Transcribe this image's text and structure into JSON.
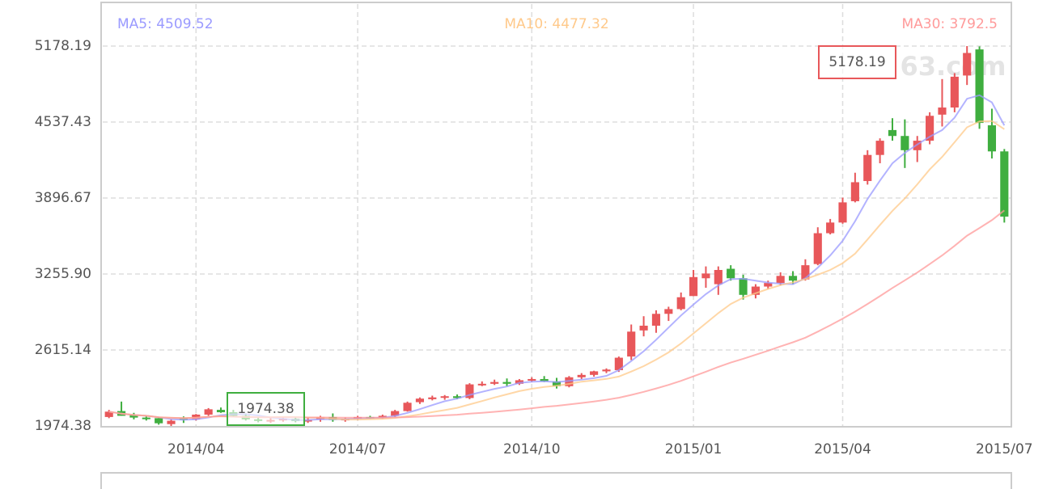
{
  "chart_data": {
    "type": "candlestick",
    "categories": [
      null,
      null,
      null,
      null,
      null,
      null,
      null,
      "2014/04",
      null,
      null,
      null,
      null,
      null,
      null,
      null,
      null,
      null,
      null,
      null,
      null,
      "2014/07",
      null,
      null,
      null,
      null,
      null,
      null,
      null,
      null,
      null,
      null,
      null,
      null,
      null,
      "2014/10",
      null,
      null,
      null,
      null,
      null,
      null,
      null,
      null,
      null,
      null,
      null,
      null,
      "2015/01",
      null,
      null,
      null,
      null,
      null,
      null,
      null,
      null,
      null,
      null,
      null,
      "2015/04",
      null,
      null,
      null,
      null,
      null,
      null,
      null,
      null,
      null,
      null,
      null,
      null,
      "2015/07"
    ],
    "open": [
      2050,
      2100,
      2065,
      2045,
      2040,
      1990,
      2040,
      2030,
      2070,
      2110,
      2090,
      2060,
      2030,
      2020,
      2025,
      2035,
      2015,
      2030,
      2050,
      2025,
      2035,
      2050,
      2045,
      2060,
      2100,
      2175,
      2200,
      2215,
      2225,
      2210,
      2325,
      2330,
      2345,
      2330,
      2360,
      2370,
      2350,
      2310,
      2385,
      2405,
      2435,
      2445,
      2560,
      2780,
      2820,
      2920,
      2960,
      3070,
      3220,
      3170,
      3300,
      3220,
      3080,
      3150,
      3180,
      3240,
      3210,
      3340,
      3600,
      3690,
      3870,
      4040,
      4260,
      4470,
      4420,
      4300,
      4380,
      4600,
      4660,
      4930,
      5150,
      4510,
      4290
    ],
    "high": [
      2110,
      2180,
      2085,
      2060,
      2050,
      2030,
      2055,
      2075,
      2125,
      2130,
      2110,
      2080,
      2050,
      2040,
      2050,
      2050,
      2040,
      2060,
      2080,
      2045,
      2060,
      2060,
      2070,
      2110,
      2180,
      2215,
      2230,
      2235,
      2240,
      2335,
      2350,
      2365,
      2375,
      2370,
      2385,
      2395,
      2380,
      2395,
      2420,
      2440,
      2460,
      2560,
      2830,
      2900,
      2950,
      2980,
      3100,
      3290,
      3320,
      3320,
      3330,
      3250,
      3170,
      3200,
      3270,
      3280,
      3380,
      3650,
      3720,
      3900,
      4110,
      4300,
      4400,
      4570,
      4560,
      4420,
      4620,
      4900,
      4950,
      5178.19,
      5176,
      4650,
      4310
    ],
    "low": [
      2040,
      2060,
      2030,
      2020,
      1985,
      1974.38,
      2000,
      2020,
      2060,
      2085,
      2050,
      2020,
      2005,
      2000,
      2010,
      2005,
      2000,
      2010,
      2010,
      2010,
      2025,
      2035,
      2035,
      2050,
      2095,
      2160,
      2190,
      2195,
      2200,
      2200,
      2310,
      2320,
      2310,
      2320,
      2345,
      2345,
      2290,
      2300,
      2370,
      2390,
      2420,
      2430,
      2530,
      2730,
      2760,
      2860,
      2950,
      3070,
      3140,
      3080,
      3200,
      3040,
      3050,
      3130,
      3160,
      3170,
      3200,
      3330,
      3590,
      3680,
      3860,
      4010,
      4190,
      4380,
      4150,
      4200,
      4350,
      4500,
      4620,
      4850,
      4480,
      4230,
      3690
    ],
    "close": [
      2095,
      2060,
      2045,
      2040,
      1997,
      2018,
      2030,
      2070,
      2115,
      2090,
      2060,
      2030,
      2020,
      2025,
      2035,
      2015,
      2025,
      2050,
      2025,
      2035,
      2050,
      2045,
      2060,
      2100,
      2170,
      2205,
      2215,
      2225,
      2210,
      2325,
      2330,
      2345,
      2330,
      2360,
      2370,
      2350,
      2310,
      2385,
      2405,
      2435,
      2450,
      2550,
      2770,
      2820,
      2920,
      2960,
      3060,
      3230,
      3260,
      3290,
      3220,
      3080,
      3150,
      3180,
      3240,
      3200,
      3330,
      3600,
      3690,
      3860,
      4030,
      4260,
      4380,
      4420,
      4300,
      4380,
      4590,
      4660,
      4920,
      5120,
      4530,
      4290,
      3740
    ],
    "up_color": "#e8575a",
    "down_color": "#3fae3f",
    "series": [
      {
        "name": "MA5: 4509.52",
        "color": "#9a9aff",
        "values": [
          2095,
          2078,
          2067,
          2060,
          2047,
          2032,
          2026,
          2031,
          2046,
          2065,
          2073,
          2073,
          2063,
          2045,
          2034,
          2025,
          2024,
          2030,
          2030,
          2030,
          2037,
          2041,
          2043,
          2059,
          2085,
          2116,
          2150,
          2183,
          2205,
          2236,
          2262,
          2287,
          2307,
          2338,
          2347,
          2351,
          2344,
          2355,
          2364,
          2377,
          2397,
          2445,
          2522,
          2605,
          2702,
          2804,
          2906,
          2998,
          3086,
          3160,
          3212,
          3216,
          3200,
          3184,
          3174,
          3170,
          3220,
          3310,
          3412,
          3536,
          3702,
          3888,
          4044,
          4190,
          4278,
          4348,
          4414,
          4470,
          4574,
          4734,
          4764,
          4704,
          4509.52
        ]
      },
      {
        "name": "MA10: 4477.32",
        "color": "#ffc98a",
        "values": [
          2095,
          2078,
          2067,
          2060,
          2047,
          2043,
          2041,
          2044,
          2052,
          2056,
          2053,
          2050,
          2048,
          2047,
          2051,
          2050,
          2045,
          2044,
          2035,
          2029,
          2028,
          2030,
          2034,
          2042,
          2056,
          2072,
          2091,
          2108,
          2127,
          2156,
          2184,
          2214,
          2241,
          2268,
          2288,
          2303,
          2313,
          2329,
          2348,
          2359,
          2371,
          2391,
          2433,
          2479,
          2534,
          2595,
          2670,
          2755,
          2840,
          2926,
          3003,
          3056,
          3094,
          3130,
          3162,
          3186,
          3213,
          3250,
          3290,
          3347,
          3428,
          3547,
          3670,
          3788,
          3894,
          4012,
          4138,
          4244,
          4367,
          4493,
          4543,
          4546,
          4477.32
        ]
      },
      {
        "name": "MA30: 3792.5",
        "color": "#ff9a9a",
        "values": [
          2095,
          2078,
          2067,
          2060,
          2047,
          2043,
          2041,
          2044,
          2052,
          2056,
          2053,
          2050,
          2048,
          2047,
          2048,
          2047,
          2046,
          2046,
          2045,
          2044,
          2044,
          2044,
          2045,
          2046,
          2049,
          2053,
          2058,
          2064,
          2069,
          2078,
          2085,
          2094,
          2103,
          2113,
          2124,
          2135,
          2144,
          2156,
          2168,
          2181,
          2195,
          2212,
          2236,
          2262,
          2291,
          2321,
          2355,
          2393,
          2432,
          2472,
          2509,
          2541,
          2575,
          2609,
          2645,
          2680,
          2719,
          2770,
          2823,
          2879,
          2939,
          3003,
          3069,
          3138,
          3203,
          3268,
          3340,
          3413,
          3493,
          3579,
          3644,
          3710,
          3792.5
        ]
      }
    ],
    "ylim": [
      1974.38,
      5532.7
    ],
    "yticks": [
      1974.38,
      2615.14,
      {
        "value": 3255.9,
        "label": "3255.90"
      },
      3896.67,
      4537.43,
      5178.19
    ],
    "grid": true,
    "markers": [
      {
        "value": 5178.19,
        "color": "#e8575a"
      },
      {
        "value": 1974.38,
        "color": "#3fae3f"
      }
    ],
    "watermark": "63.com"
  }
}
